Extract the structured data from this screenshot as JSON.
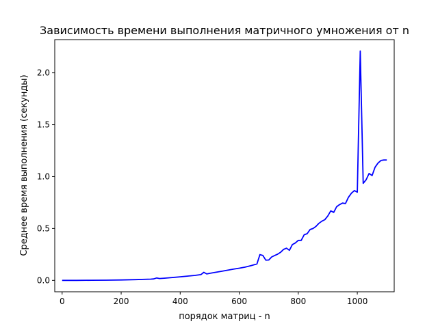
{
  "chart_data": {
    "type": "line",
    "title": "Зависимость времени выполнения матричного умножения от n",
    "xlabel": "порядок матриц - n",
    "ylabel": "Среднее время выполнения (секунды)",
    "xlim": [
      -25,
      1125
    ],
    "ylim": [
      -0.11,
      2.32
    ],
    "xticks": [
      0,
      200,
      400,
      600,
      800,
      1000
    ],
    "xtick_labels": [
      "0",
      "200",
      "400",
      "600",
      "800",
      "1000"
    ],
    "yticks": [
      0.0,
      0.5,
      1.0,
      1.5,
      2.0
    ],
    "ytick_labels": [
      "0.0",
      "0.5",
      "1.0",
      "1.5",
      "2.0"
    ],
    "grid": false,
    "series": [
      {
        "color": "#0000ff",
        "x": [
          0,
          50,
          100,
          150,
          200,
          250,
          300,
          310,
          320,
          330,
          350,
          400,
          450,
          470,
          480,
          490,
          500,
          550,
          580,
          600,
          620,
          640,
          660,
          670,
          680,
          690,
          700,
          710,
          720,
          730,
          740,
          750,
          760,
          770,
          780,
          790,
          800,
          810,
          820,
          830,
          840,
          850,
          860,
          870,
          880,
          890,
          900,
          910,
          920,
          930,
          940,
          950,
          960,
          970,
          980,
          990,
          1000,
          1010,
          1020,
          1030,
          1040,
          1050,
          1060,
          1070,
          1080,
          1090,
          1100
        ],
        "y": [
          0.0,
          0.0,
          0.001,
          0.002,
          0.004,
          0.007,
          0.012,
          0.014,
          0.023,
          0.018,
          0.022,
          0.034,
          0.048,
          0.055,
          0.078,
          0.062,
          0.068,
          0.092,
          0.108,
          0.117,
          0.128,
          0.142,
          0.158,
          0.248,
          0.24,
          0.195,
          0.196,
          0.226,
          0.24,
          0.252,
          0.27,
          0.298,
          0.31,
          0.29,
          0.345,
          0.36,
          0.385,
          0.385,
          0.44,
          0.45,
          0.49,
          0.5,
          0.52,
          0.55,
          0.57,
          0.585,
          0.62,
          0.67,
          0.655,
          0.71,
          0.73,
          0.745,
          0.74,
          0.8,
          0.84,
          0.865,
          0.85,
          2.21,
          0.935,
          0.97,
          1.03,
          1.01,
          1.09,
          1.13,
          1.155,
          1.16,
          1.16
        ]
      }
    ]
  }
}
